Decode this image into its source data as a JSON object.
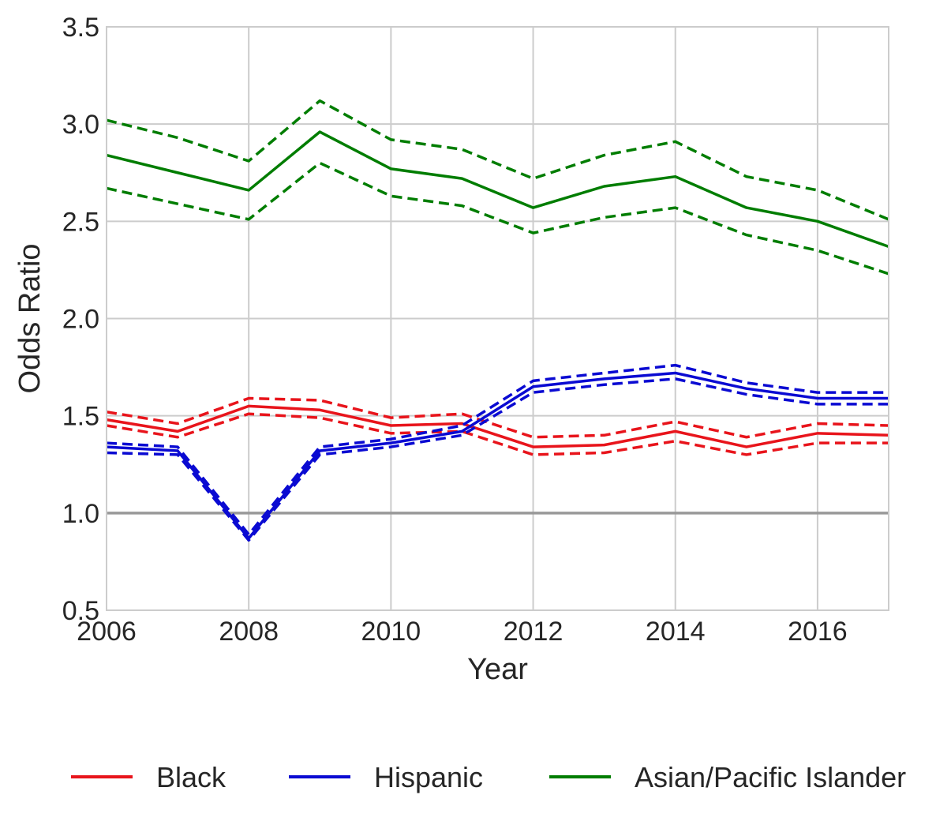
{
  "chart_data": {
    "type": "line",
    "title": "",
    "xlabel": "Year",
    "ylabel": "Odds Ratio",
    "xlim": [
      2006,
      2017
    ],
    "ylim": [
      0.5,
      3.5
    ],
    "x_ticks": [
      2006,
      2008,
      2010,
      2012,
      2014,
      2016
    ],
    "y_ticks": [
      0.5,
      1.0,
      1.5,
      2.0,
      2.5,
      3.0,
      3.5
    ],
    "x_tick_labels": [
      "2006",
      "2008",
      "2010",
      "2012",
      "2014",
      "2016"
    ],
    "y_tick_labels": [
      "0.5",
      "1.0",
      "1.5",
      "2.0",
      "2.5",
      "3.0",
      "3.5"
    ],
    "grid": true,
    "reference_line": {
      "y": 1.0,
      "color": "#999999"
    },
    "legend_position": "bottom",
    "x": [
      2006,
      2007,
      2008,
      2009,
      2010,
      2011,
      2012,
      2013,
      2014,
      2015,
      2016,
      2017
    ],
    "series": [
      {
        "name": "Black",
        "color": "#e8141b",
        "values": [
          1.48,
          1.42,
          1.55,
          1.53,
          1.45,
          1.46,
          1.34,
          1.35,
          1.42,
          1.34,
          1.41,
          1.4
        ],
        "upper": [
          1.52,
          1.46,
          1.59,
          1.58,
          1.49,
          1.51,
          1.39,
          1.4,
          1.47,
          1.39,
          1.46,
          1.45
        ],
        "lower": [
          1.45,
          1.39,
          1.51,
          1.49,
          1.41,
          1.42,
          1.3,
          1.31,
          1.37,
          1.3,
          1.36,
          1.36
        ]
      },
      {
        "name": "Hispanic",
        "color": "#0a0ad2",
        "values": [
          1.34,
          1.32,
          0.87,
          1.32,
          1.36,
          1.42,
          1.65,
          1.69,
          1.72,
          1.64,
          1.59,
          1.59
        ],
        "upper": [
          1.36,
          1.34,
          0.89,
          1.34,
          1.38,
          1.45,
          1.68,
          1.72,
          1.76,
          1.67,
          1.62,
          1.62
        ],
        "lower": [
          1.31,
          1.3,
          0.86,
          1.3,
          1.34,
          1.4,
          1.62,
          1.66,
          1.69,
          1.61,
          1.56,
          1.56
        ]
      },
      {
        "name": "Asian/Pacific Islander",
        "color": "#007d00",
        "values": [
          2.84,
          2.75,
          2.66,
          2.96,
          2.77,
          2.72,
          2.57,
          2.68,
          2.73,
          2.57,
          2.5,
          2.37
        ],
        "upper": [
          3.02,
          2.93,
          2.81,
          3.12,
          2.92,
          2.87,
          2.72,
          2.84,
          2.91,
          2.73,
          2.66,
          2.51
        ],
        "lower": [
          2.67,
          2.59,
          2.51,
          2.8,
          2.63,
          2.58,
          2.44,
          2.52,
          2.57,
          2.43,
          2.35,
          2.23
        ]
      }
    ]
  }
}
